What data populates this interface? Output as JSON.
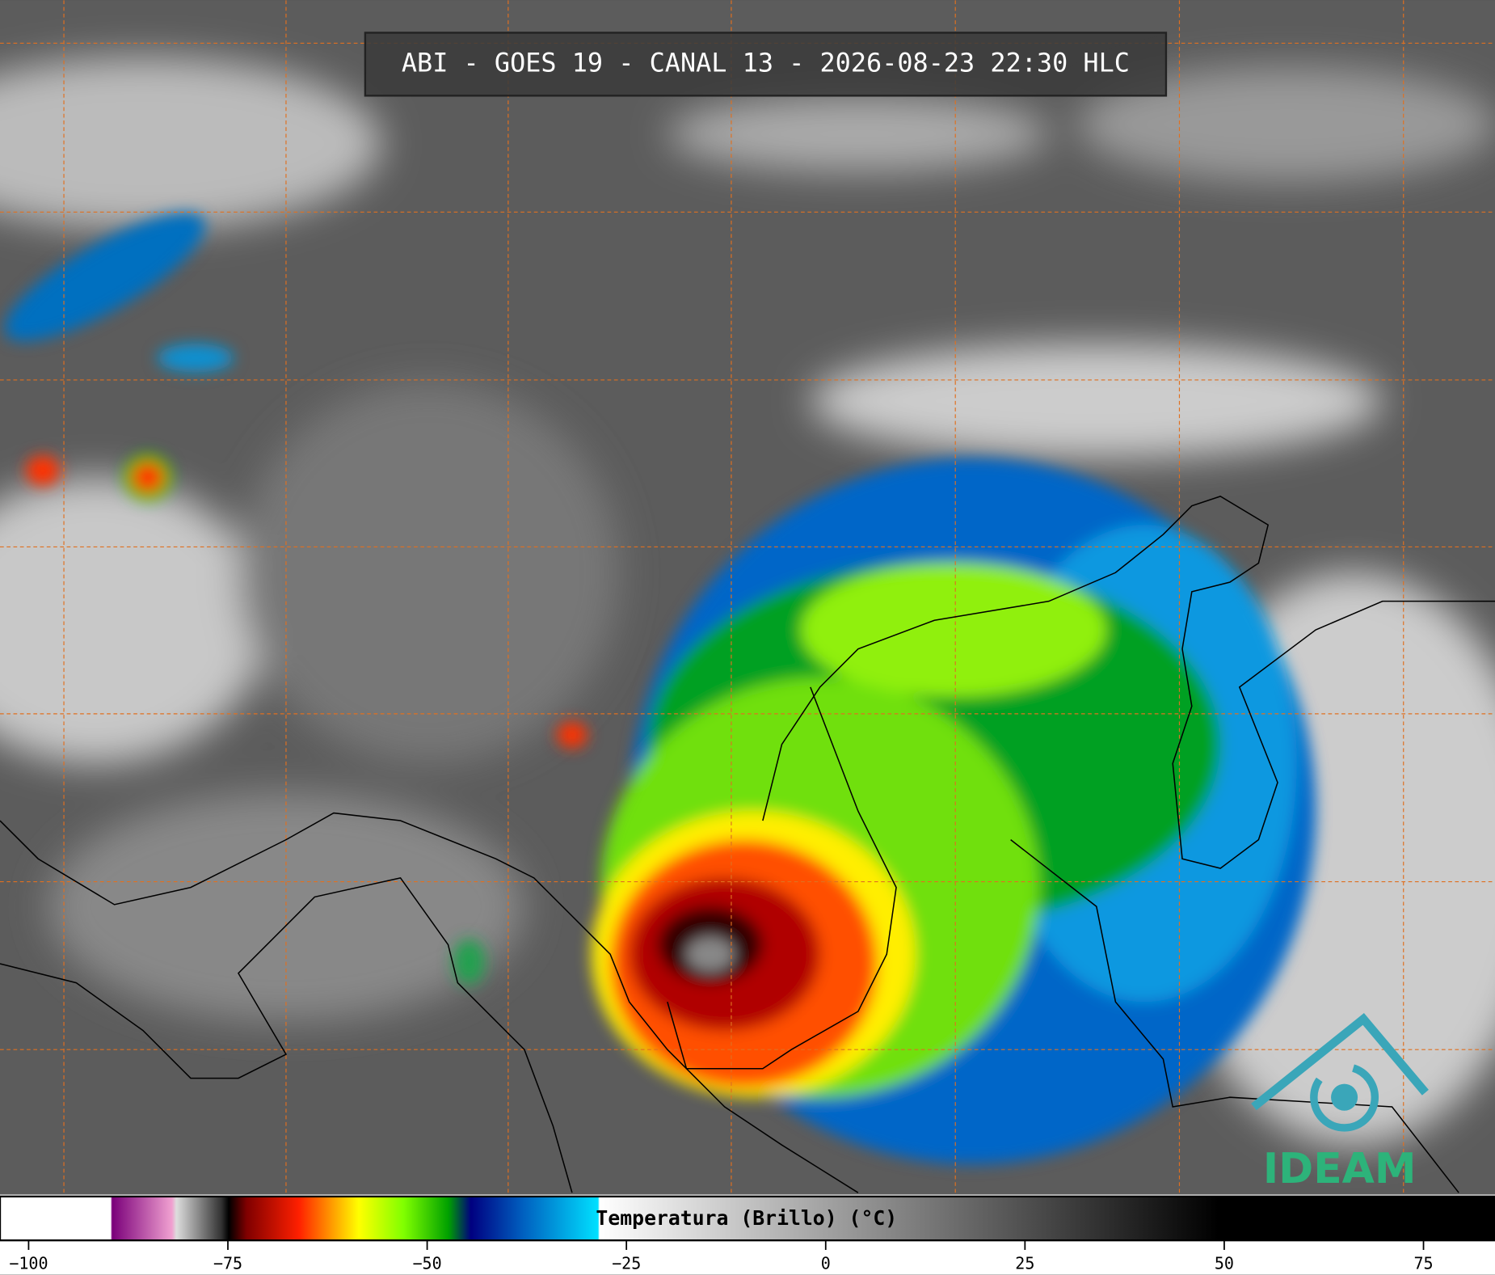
{
  "header": {
    "title": "ABI - GOES 19 - CANAL 13 - 2026-08-23 22:30 HLC"
  },
  "colorbar": {
    "label": "Temperatura (Brillo) (°C)",
    "lim": [
      -103.59,
      83.97
    ],
    "ticks": [
      {
        "value": -100,
        "label": "−100"
      },
      {
        "value": -75,
        "label": "−75"
      },
      {
        "value": -50,
        "label": "−50"
      },
      {
        "value": -25,
        "label": "−25"
      },
      0,
      25,
      50,
      75
    ]
  },
  "logo": {
    "text": "IDEAM"
  }
}
